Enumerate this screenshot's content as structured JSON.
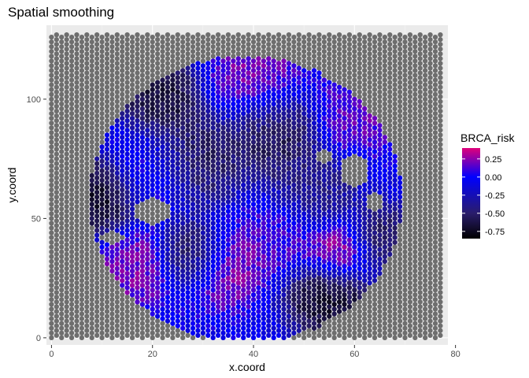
{
  "chart_data": {
    "type": "scatter",
    "title": "Spatial smoothing",
    "xlabel": "x.coord",
    "ylabel": "y.coord",
    "xlim": [
      -1,
      78.5
    ],
    "ylim": [
      -3,
      131
    ],
    "x_ticks": [
      0,
      20,
      40,
      60,
      80
    ],
    "y_ticks": [
      0,
      50,
      100
    ],
    "grid": true,
    "background": "#ebebeb",
    "na_color": "#6e6e6e",
    "grid_spacing": {
      "x": 1,
      "y": 2
    },
    "x_range": [
      0,
      77
    ],
    "y_range": [
      0,
      127
    ],
    "tissue_region": {
      "center_x": 38.5,
      "center_y": 58,
      "radius_x": 31,
      "radius_y": 60
    },
    "legend": {
      "title": "BRCA_risk",
      "placement": "right",
      "breaks": [
        0.25,
        0.0,
        -0.25,
        -0.5,
        -0.75
      ],
      "break_labels": [
        "0.25",
        "0.00",
        "-0.25",
        "-0.50",
        "-0.75"
      ],
      "range": [
        -0.85,
        0.4
      ],
      "gradient": [
        {
          "value": -0.85,
          "color": "#000000"
        },
        {
          "value": -0.5,
          "color": "#2a1d6b"
        },
        {
          "value": 0.0,
          "color": "#0000ff"
        },
        {
          "value": 0.4,
          "color": "#e0007a"
        }
      ]
    },
    "risk_field": [
      {
        "x": 17,
        "y": 30,
        "value": 0.25,
        "spread": 6
      },
      {
        "x": 34,
        "y": 30,
        "value": 0.3,
        "spread": 6
      },
      {
        "x": 57,
        "y": 36,
        "value": 0.4,
        "spread": 5
      },
      {
        "x": 46,
        "y": 43,
        "value": 0.15,
        "spread": 6
      },
      {
        "x": 20,
        "y": 70,
        "value": 0.2,
        "spread": 7
      },
      {
        "x": 40,
        "y": 108,
        "value": 0.25,
        "spread": 7
      },
      {
        "x": 60,
        "y": 93,
        "value": 0.2,
        "spread": 6
      },
      {
        "x": 10,
        "y": 60,
        "value": -0.85,
        "spread": 6
      },
      {
        "x": 27,
        "y": 75,
        "value": -0.7,
        "spread": 7
      },
      {
        "x": 22,
        "y": 100,
        "value": -0.75,
        "spread": 6
      },
      {
        "x": 44,
        "y": 85,
        "value": -0.65,
        "spread": 7
      },
      {
        "x": 28,
        "y": 35,
        "value": -0.75,
        "spread": 5
      },
      {
        "x": 55,
        "y": 17,
        "value": -0.8,
        "spread": 6
      },
      {
        "x": 65,
        "y": 42,
        "value": -0.6,
        "spread": 5
      },
      {
        "x": 52,
        "y": 60,
        "value": -0.45,
        "spread": 6
      }
    ],
    "gaps": [
      {
        "x": 20,
        "y": 53,
        "rx": 3.5,
        "ry": 6
      },
      {
        "x": 60,
        "y": 70,
        "rx": 3,
        "ry": 7
      },
      {
        "x": 64,
        "y": 57,
        "rx": 2,
        "ry": 4
      },
      {
        "x": 12,
        "y": 42,
        "rx": 2,
        "ry": 3
      },
      {
        "x": 54,
        "y": 76,
        "rx": 1.5,
        "ry": 3
      }
    ]
  }
}
